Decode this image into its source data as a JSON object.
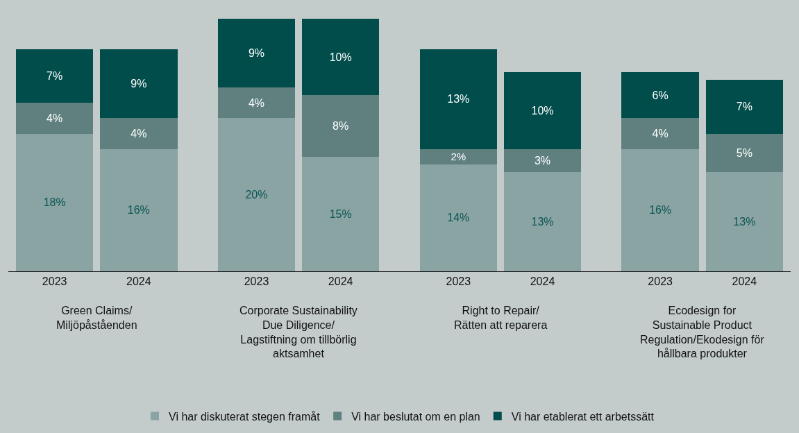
{
  "chart_data": {
    "type": "bar",
    "stacked": true,
    "legend": "bottom",
    "grid": false,
    "categories": [
      "2023",
      "2024",
      "2023",
      "2024",
      "2023",
      "2024",
      "2023",
      "2024"
    ],
    "series": [
      {
        "name": "Vi har diskuterat stegen framåt",
        "color": "#8aa3a3",
        "values": [
          18,
          16,
          20,
          15,
          14,
          13,
          16,
          13
        ],
        "value_labels": [
          "18%",
          "16%",
          "20%",
          "15%",
          "14%",
          "13%",
          "16%",
          "13%"
        ]
      },
      {
        "name": "Vi har beslutat om en plan",
        "color": "#5f807f",
        "values": [
          4,
          4,
          4,
          8,
          2,
          3,
          4,
          5
        ],
        "value_labels": [
          "4%",
          "4%",
          "4%",
          "8%",
          "2%",
          "3%",
          "4%",
          "5%"
        ]
      },
      {
        "name": "Vi har etablerat ett arbetssätt",
        "color": "#004d4b",
        "values": [
          7,
          9,
          9,
          10,
          13,
          10,
          6,
          7
        ],
        "value_labels": [
          "7%",
          "9%",
          "9%",
          "10%",
          "13%",
          "10%",
          "6%",
          "7%"
        ]
      }
    ],
    "annotations": [
      "Green Claims/\nMiljöpåståenden",
      "Corporate Sustainability\nDue Diligence/\nLagstiftning om tillbörlig\naktsamhet",
      "Right to Repair/\nRätten att reparera",
      "Ecodesign for\nSustainable Product\nRegulation/Ekodesign för\nhållbara produkter"
    ]
  }
}
